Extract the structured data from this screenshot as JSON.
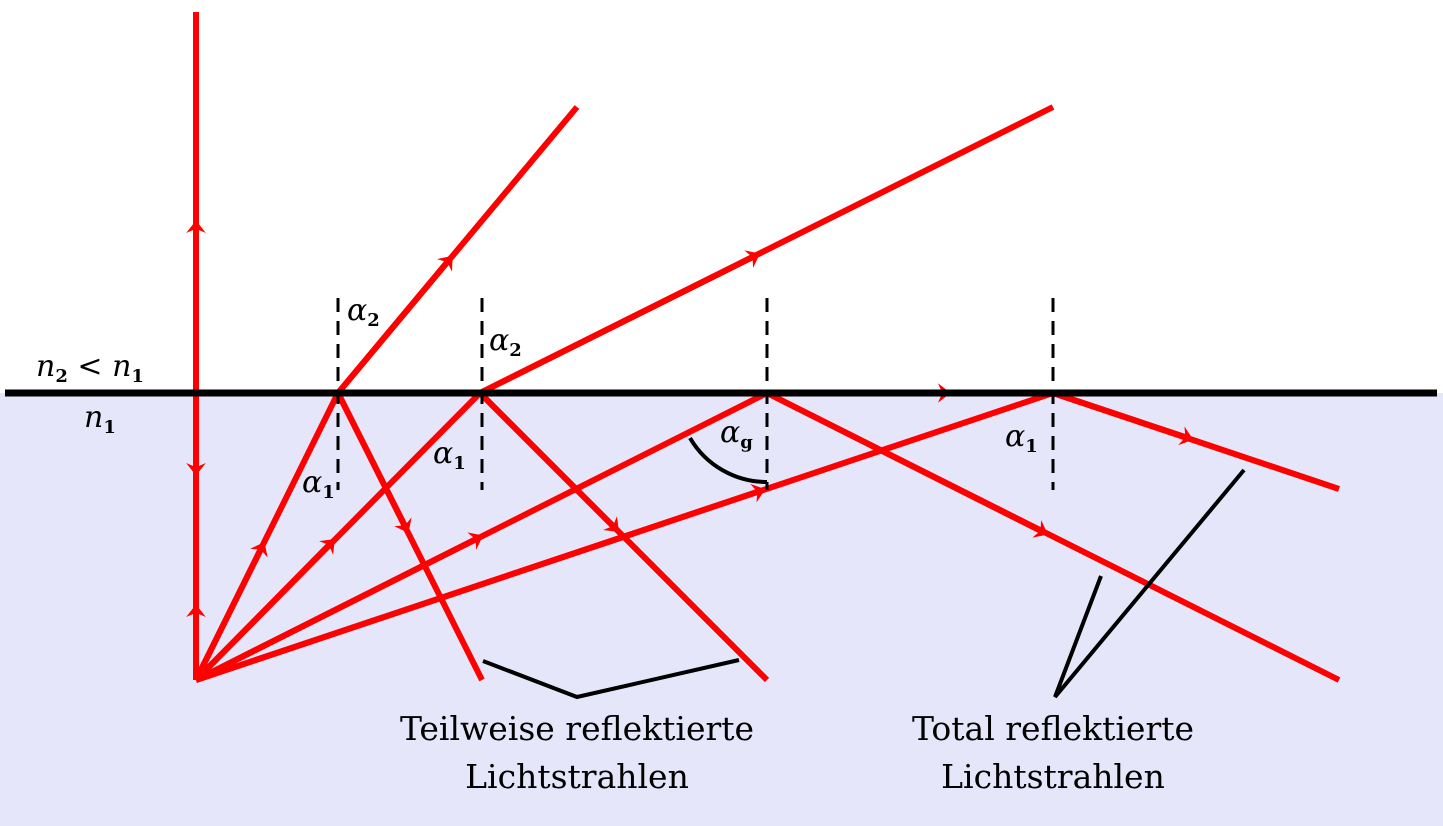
{
  "media": {
    "upper_label": "n",
    "upper_sub": "2",
    "upper_rel": " < ",
    "upper_label2": "n",
    "upper_sub2": "1",
    "lower_label": "n",
    "lower_sub": "1"
  },
  "angles": {
    "alpha": "α",
    "sub_1": "1",
    "sub_2": "2",
    "sub_g": "g"
  },
  "captions": {
    "partial_line1": "Teilweise reflektierte",
    "partial_line2": "Lichtstrahlen",
    "total_line1": "Total reflektierte",
    "total_line2": "Lichtstrahlen"
  },
  "colors": {
    "ray": "#ff0000",
    "medium": "#e6e6fa",
    "boundary": "#000000"
  }
}
